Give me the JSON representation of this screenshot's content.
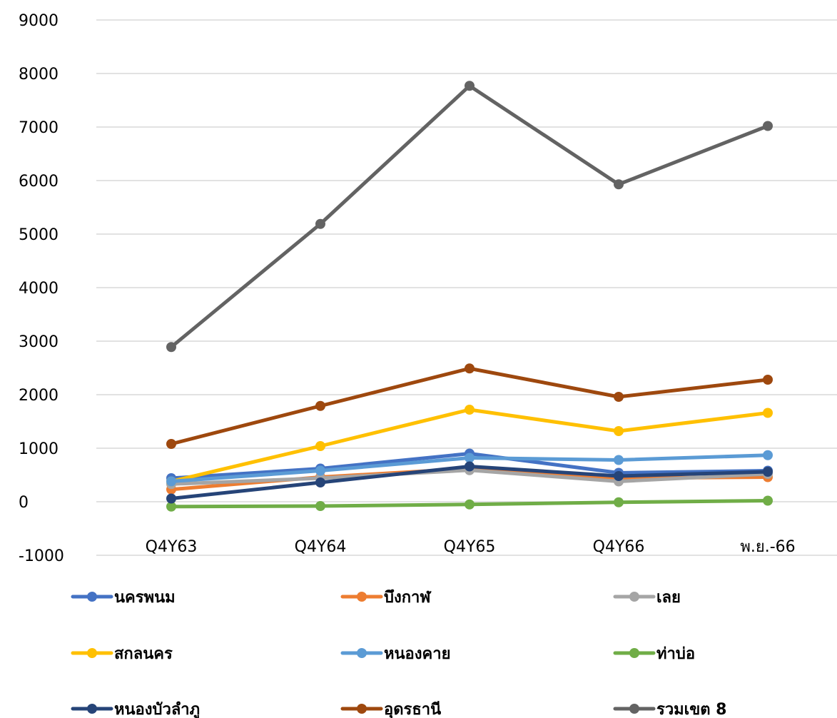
{
  "chart_data": {
    "type": "line",
    "title": "",
    "xlabel": "",
    "ylabel": "",
    "ylim": [
      -1000,
      9000
    ],
    "y_ticks": [
      "9000",
      "8000",
      "7000",
      "6000",
      "5000",
      "4000",
      "3000",
      "2000",
      "1000",
      "0",
      "-1000"
    ],
    "categories": [
      "Q4Y63",
      "Q4Y64",
      "Q4Y65",
      "Q4Y66",
      "พ.ย.-66"
    ],
    "grid": true,
    "legend_position": "bottom",
    "series": [
      {
        "name": "นครพนม",
        "color": "#4472C4",
        "values": [
          440,
          620,
          900,
          540,
          580
        ]
      },
      {
        "name": "บึงกาฬ",
        "color": "#ED7D31",
        "values": [
          230,
          460,
          620,
          440,
          460
        ]
      },
      {
        "name": "เลย",
        "color": "#A5A5A5",
        "values": [
          330,
          440,
          590,
          380,
          520
        ]
      },
      {
        "name": "สกลนคร",
        "color": "#FFC000",
        "values": [
          380,
          1040,
          1720,
          1320,
          1660
        ]
      },
      {
        "name": "หนองคาย",
        "color": "#5B9BD5",
        "values": [
          380,
          580,
          820,
          780,
          870
        ]
      },
      {
        "name": "ท่าบ่อ",
        "color": "#70AD47",
        "values": [
          -90,
          -80,
          -50,
          -10,
          20
        ]
      },
      {
        "name": "หนองบัวลำภู",
        "color": "#264478",
        "values": [
          60,
          360,
          660,
          480,
          560
        ]
      },
      {
        "name": "อุดรธานี",
        "color": "#9E480E",
        "values": [
          1080,
          1790,
          2490,
          1960,
          2280
        ]
      },
      {
        "name": "รวมเขต 8",
        "color": "#636363",
        "values": [
          2890,
          5190,
          7770,
          5930,
          7020
        ]
      }
    ]
  }
}
